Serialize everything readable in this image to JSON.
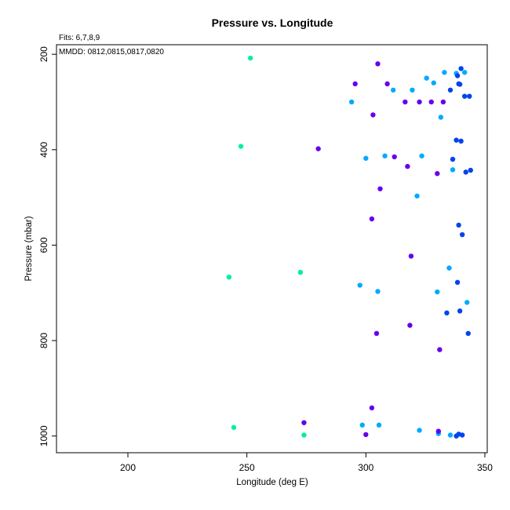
{
  "chart_data": {
    "type": "scatter",
    "title": "Pressure vs. Longitude",
    "xlabel": "Longitude (deg E)",
    "ylabel": "Pressure (mbar)",
    "notes": [
      "Fits: 6,7,8,9",
      "MMDD: 0812,0815,0817,0820"
    ],
    "xlim": [
      170,
      351
    ],
    "ylim": [
      1035,
      180
    ],
    "y_reversed": true,
    "xticks": [
      200,
      250,
      300,
      350
    ],
    "yticks": [
      200,
      400,
      600,
      800,
      1000
    ],
    "grid": false,
    "series": [
      {
        "color": "#00f0a0",
        "points": [
          [
            251.5,
            208
          ],
          [
            247.5,
            393
          ],
          [
            242.5,
            667
          ],
          [
            272.5,
            657
          ],
          [
            244.5,
            982
          ],
          [
            274.0,
            998
          ]
        ]
      },
      {
        "color": "#00aaff",
        "points": [
          [
            294.0,
            300
          ],
          [
            300.0,
            418
          ],
          [
            308.0,
            413
          ],
          [
            311.5,
            275
          ],
          [
            319.5,
            275
          ],
          [
            325.5,
            250
          ],
          [
            328.5,
            260
          ],
          [
            333.0,
            238
          ],
          [
            331.5,
            332
          ],
          [
            323.5,
            413
          ],
          [
            321.5,
            497
          ],
          [
            336.5,
            442
          ],
          [
            338.0,
            240
          ],
          [
            341.5,
            238
          ],
          [
            297.5,
            684
          ],
          [
            305.0,
            697
          ],
          [
            335.0,
            648
          ],
          [
            330.0,
            698
          ],
          [
            342.5,
            720
          ],
          [
            298.5,
            977
          ],
          [
            305.5,
            977
          ],
          [
            322.5,
            988
          ],
          [
            330.5,
            995
          ],
          [
            335.5,
            998
          ]
        ]
      },
      {
        "color": "#0044ee",
        "points": [
          [
            338.0,
            380
          ],
          [
            336.5,
            420
          ],
          [
            340.0,
            382
          ],
          [
            342.0,
            447
          ],
          [
            344.0,
            443
          ],
          [
            338.5,
            245
          ],
          [
            339.0,
            262
          ],
          [
            340.0,
            230
          ],
          [
            335.5,
            275
          ],
          [
            341.5,
            288
          ],
          [
            343.5,
            288
          ],
          [
            339.5,
            263
          ],
          [
            339.0,
            558
          ],
          [
            340.5,
            578
          ],
          [
            338.5,
            678
          ],
          [
            339.5,
            738
          ],
          [
            334.0,
            742
          ],
          [
            343.0,
            785
          ],
          [
            338.0,
            1000
          ],
          [
            339.0,
            996
          ],
          [
            340.5,
            998
          ]
        ]
      },
      {
        "color": "#6600ee",
        "points": [
          [
            305.0,
            220
          ],
          [
            295.5,
            262
          ],
          [
            309.0,
            262
          ],
          [
            303.0,
            327
          ],
          [
            316.5,
            300
          ],
          [
            322.5,
            300
          ],
          [
            327.5,
            300
          ],
          [
            332.5,
            300
          ],
          [
            280.0,
            398
          ],
          [
            312.0,
            415
          ],
          [
            317.5,
            435
          ],
          [
            330.0,
            450
          ],
          [
            306.0,
            482
          ],
          [
            302.5,
            545
          ],
          [
            319.0,
            623
          ],
          [
            318.5,
            768
          ],
          [
            304.5,
            785
          ],
          [
            331.0,
            819
          ],
          [
            302.5,
            941
          ],
          [
            274.0,
            972
          ],
          [
            300.0,
            997
          ],
          [
            330.5,
            990
          ]
        ]
      }
    ]
  }
}
